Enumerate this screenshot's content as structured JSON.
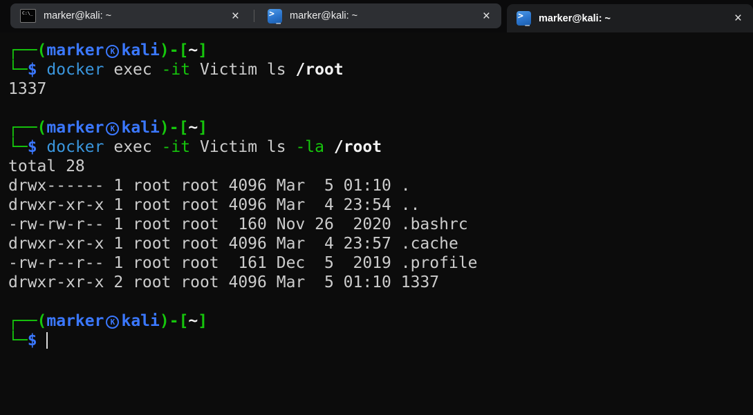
{
  "ui": {
    "close_glyph": "×",
    "icons": {
      "cmd_text": "C:\\_",
      "ps_arrow": ">",
      "ps_underscore": "_"
    },
    "colors": {
      "terminal_bg": "#0C0C0C",
      "prompt_green": "#16C60C",
      "prompt_blue": "#3B78FF",
      "command_cyan": "#3A96DD",
      "foreground": "#CCCCCC",
      "bright_white": "#F2F2F2",
      "tab_active_bg": "#1D1E20",
      "tab_inactive_bg": "#2D2F33"
    }
  },
  "tabs": [
    {
      "title": "marker@kali: ~",
      "icon": "cmd-icon",
      "active": false
    },
    {
      "title": "marker@kali: ~",
      "icon": "powershell-icon",
      "active": false
    },
    {
      "title": "marker@kali: ~",
      "icon": "powershell-icon",
      "active": true
    }
  ],
  "terminal": {
    "prompt": {
      "line1_open": "┌──(",
      "user": "marker",
      "at_badge": "K",
      "host": "kali",
      "line1_mid": ")-[",
      "cwd": "~",
      "line1_close": "]",
      "line2_branch": "└─",
      "dollar": "$"
    },
    "command1": [
      "docker",
      "exec",
      "-it",
      "Victim",
      "ls",
      "/root"
    ],
    "command1_output": "1337",
    "command2": [
      "docker",
      "exec",
      "-it",
      "Victim",
      "ls",
      "-la",
      "/root"
    ],
    "command2_output_header": "total 28",
    "listing": [
      "drwx------ 1 root root 4096 Mar  5 01:10 .",
      "drwxr-xr-x 1 root root 4096 Mar  4 23:54 ..",
      "-rw-rw-r-- 1 root root  160 Nov 26  2020 .bashrc",
      "drwxr-xr-x 1 root root 4096 Mar  4 23:57 .cache",
      "-rw-r--r-- 1 root root  161 Dec  5  2019 .profile",
      "drwxr-xr-x 2 root root 4096 Mar  5 01:10 1337"
    ]
  }
}
